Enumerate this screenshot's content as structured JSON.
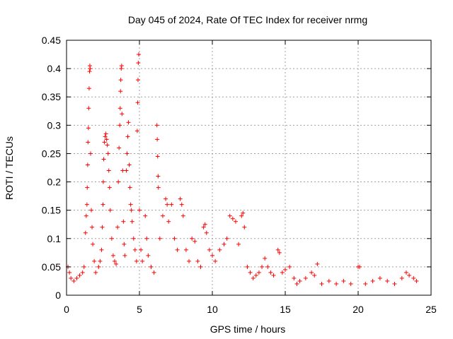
{
  "chart_data": {
    "type": "scatter",
    "title": "Day 045 of 2024, Rate Of TEC Index for receiver nrmg",
    "xlabel": "GPS time / hours",
    "ylabel": "ROTI / TECUs",
    "xlim": [
      0,
      25
    ],
    "ylim": [
      0,
      0.45
    ],
    "xticks": [
      0,
      5,
      10,
      15,
      20,
      25
    ],
    "yticks": [
      0,
      0.05,
      0.1,
      0.15,
      0.2,
      0.25,
      0.3,
      0.35,
      0.4,
      0.45
    ],
    "xtick_labels": [
      "0",
      "5",
      "10",
      "15",
      "20",
      "25"
    ],
    "ytick_labels": [
      "0",
      "0.05",
      "0.1",
      "0.15",
      "0.2",
      "0.25",
      "0.3",
      "0.35",
      "0.4",
      "0.45"
    ],
    "grid": true,
    "marker": "+",
    "color": "#ff0000",
    "series": [
      {
        "name": "ROTI",
        "points": [
          [
            0.1,
            0.05
          ],
          [
            0.2,
            0.04
          ],
          [
            0.3,
            0.03
          ],
          [
            0.5,
            0.025
          ],
          [
            0.7,
            0.03
          ],
          [
            0.9,
            0.035
          ],
          [
            1.1,
            0.04
          ],
          [
            1.2,
            0.05
          ],
          [
            1.3,
            0.11
          ],
          [
            1.35,
            0.14
          ],
          [
            1.4,
            0.16
          ],
          [
            1.42,
            0.19
          ],
          [
            1.45,
            0.23
          ],
          [
            1.47,
            0.27
          ],
          [
            1.5,
            0.295
          ],
          [
            1.52,
            0.33
          ],
          [
            1.55,
            0.365
          ],
          [
            1.58,
            0.395
          ],
          [
            1.6,
            0.405
          ],
          [
            1.62,
            0.4
          ],
          [
            1.65,
            0.25
          ],
          [
            1.7,
            0.15
          ],
          [
            1.75,
            0.12
          ],
          [
            1.8,
            0.09
          ],
          [
            1.9,
            0.06
          ],
          [
            2.0,
            0.04
          ],
          [
            2.2,
            0.05
          ],
          [
            2.3,
            0.06
          ],
          [
            2.4,
            0.08
          ],
          [
            2.45,
            0.12
          ],
          [
            2.5,
            0.16
          ],
          [
            2.52,
            0.2
          ],
          [
            2.55,
            0.24
          ],
          [
            2.6,
            0.27
          ],
          [
            2.65,
            0.28
          ],
          [
            2.7,
            0.285
          ],
          [
            2.75,
            0.275
          ],
          [
            2.8,
            0.265
          ],
          [
            2.85,
            0.25
          ],
          [
            2.9,
            0.22
          ],
          [
            2.95,
            0.19
          ],
          [
            3.0,
            0.15
          ],
          [
            3.1,
            0.1
          ],
          [
            3.2,
            0.07
          ],
          [
            3.3,
            0.06
          ],
          [
            3.4,
            0.055
          ],
          [
            3.5,
            0.12
          ],
          [
            3.55,
            0.2
          ],
          [
            3.6,
            0.26
          ],
          [
            3.65,
            0.3
          ],
          [
            3.68,
            0.33
          ],
          [
            3.7,
            0.36
          ],
          [
            3.72,
            0.38
          ],
          [
            3.75,
            0.4
          ],
          [
            3.78,
            0.405
          ],
          [
            3.8,
            0.32
          ],
          [
            3.85,
            0.22
          ],
          [
            3.9,
            0.13
          ],
          [
            3.95,
            0.09
          ],
          [
            4.0,
            0.07
          ],
          [
            4.1,
            0.22
          ],
          [
            4.15,
            0.25
          ],
          [
            4.2,
            0.28
          ],
          [
            4.25,
            0.305
          ],
          [
            4.3,
            0.23
          ],
          [
            4.35,
            0.19
          ],
          [
            4.4,
            0.16
          ],
          [
            4.45,
            0.15
          ],
          [
            4.5,
            0.13
          ],
          [
            4.6,
            0.1
          ],
          [
            4.7,
            0.08
          ],
          [
            4.8,
            0.06
          ],
          [
            4.85,
            0.29
          ],
          [
            4.88,
            0.34
          ],
          [
            4.9,
            0.38
          ],
          [
            4.92,
            0.41
          ],
          [
            4.95,
            0.425
          ],
          [
            5.0,
            0.15
          ],
          [
            5.1,
            0.08
          ],
          [
            5.2,
            0.06
          ],
          [
            5.4,
            0.14
          ],
          [
            5.5,
            0.1
          ],
          [
            5.6,
            0.07
          ],
          [
            5.8,
            0.05
          ],
          [
            6.0,
            0.04
          ],
          [
            6.2,
            0.3
          ],
          [
            6.22,
            0.275
          ],
          [
            6.25,
            0.245
          ],
          [
            6.28,
            0.21
          ],
          [
            6.3,
            0.19
          ],
          [
            6.4,
            0.1
          ],
          [
            6.6,
            0.14
          ],
          [
            6.8,
            0.17
          ],
          [
            6.9,
            0.16
          ],
          [
            7.0,
            0.13
          ],
          [
            7.2,
            0.16
          ],
          [
            7.4,
            0.1
          ],
          [
            7.6,
            0.08
          ],
          [
            7.8,
            0.17
          ],
          [
            7.9,
            0.16
          ],
          [
            8.0,
            0.14
          ],
          [
            8.2,
            0.08
          ],
          [
            8.4,
            0.06
          ],
          [
            8.6,
            0.1
          ],
          [
            8.8,
            0.095
          ],
          [
            9.0,
            0.06
          ],
          [
            9.2,
            0.05
          ],
          [
            9.4,
            0.12
          ],
          [
            9.5,
            0.125
          ],
          [
            9.6,
            0.11
          ],
          [
            9.8,
            0.08
          ],
          [
            10.0,
            0.07
          ],
          [
            10.2,
            0.06
          ],
          [
            10.5,
            0.08
          ],
          [
            10.8,
            0.09
          ],
          [
            11.0,
            0.1
          ],
          [
            11.2,
            0.14
          ],
          [
            11.4,
            0.135
          ],
          [
            11.6,
            0.13
          ],
          [
            11.8,
            0.09
          ],
          [
            12.0,
            0.14
          ],
          [
            12.1,
            0.145
          ],
          [
            12.2,
            0.12
          ],
          [
            12.4,
            0.05
          ],
          [
            12.6,
            0.04
          ],
          [
            12.8,
            0.03
          ],
          [
            13.0,
            0.035
          ],
          [
            13.2,
            0.04
          ],
          [
            13.4,
            0.05
          ],
          [
            13.6,
            0.065
          ],
          [
            13.8,
            0.05
          ],
          [
            14.0,
            0.04
          ],
          [
            14.2,
            0.035
          ],
          [
            14.5,
            0.08
          ],
          [
            14.6,
            0.075
          ],
          [
            14.8,
            0.04
          ],
          [
            15.0,
            0.045
          ],
          [
            15.3,
            0.05
          ],
          [
            15.6,
            0.03
          ],
          [
            15.8,
            0.02
          ],
          [
            16.0,
            0.025
          ],
          [
            16.4,
            0.03
          ],
          [
            16.8,
            0.04
          ],
          [
            17.0,
            0.035
          ],
          [
            17.2,
            0.055
          ],
          [
            17.5,
            0.02
          ],
          [
            18.0,
            0.025
          ],
          [
            18.5,
            0.02
          ],
          [
            19.0,
            0.025
          ],
          [
            19.5,
            0.02
          ],
          [
            20.0,
            0.05
          ],
          [
            20.1,
            0.05
          ],
          [
            20.5,
            0.02
          ],
          [
            21.0,
            0.025
          ],
          [
            21.5,
            0.03
          ],
          [
            22.0,
            0.025
          ],
          [
            22.5,
            0.02
          ],
          [
            23.0,
            0.03
          ],
          [
            23.3,
            0.04
          ],
          [
            23.5,
            0.035
          ],
          [
            23.8,
            0.03
          ],
          [
            24.0,
            0.025
          ]
        ]
      }
    ]
  }
}
